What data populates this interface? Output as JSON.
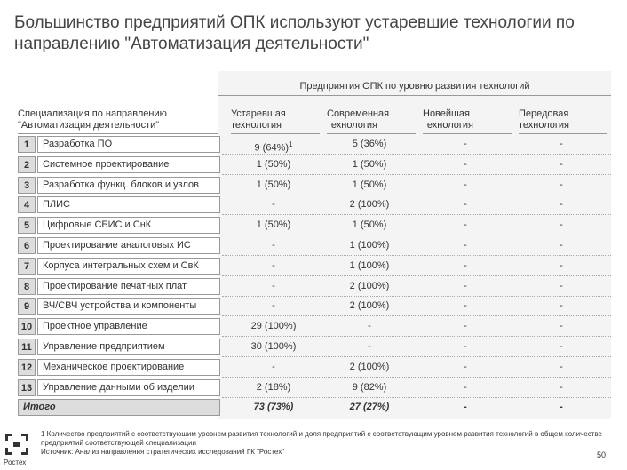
{
  "header": {
    "title": "Большинство предприятий ОПК используют устаревшие технологии по направлению \"Автоматизация деятельности\""
  },
  "table": {
    "group_header": "Предприятия ОПК по уровню развития технологий",
    "row_header": "Специализация по направлению \"Автоматизация деятельности\"",
    "columns": [
      "Устаревшая технология",
      "Современная технология",
      "Новейшая технология",
      "Передовая технология"
    ],
    "note_marker": "1",
    "rows": [
      {
        "num": "1",
        "name": "Разработка ПО",
        "cells": [
          "9 (64%)",
          "5 (36%)",
          "-",
          "-"
        ]
      },
      {
        "num": "2",
        "name": "Системное проектирование",
        "cells": [
          "1 (50%)",
          "1 (50%)",
          "-",
          "-"
        ]
      },
      {
        "num": "3",
        "name": "Разработка функц. блоков и узлов",
        "cells": [
          "1 (50%)",
          "1 (50%)",
          "-",
          "-"
        ]
      },
      {
        "num": "4",
        "name": "ПЛИС",
        "cells": [
          "-",
          "2 (100%)",
          "-",
          "-"
        ]
      },
      {
        "num": "5",
        "name": "Цифровые СБИС и СнК",
        "cells": [
          "1 (50%)",
          "1 (50%)",
          "-",
          "-"
        ]
      },
      {
        "num": "6",
        "name": "Проектирование аналоговых ИС",
        "cells": [
          "-",
          "1 (100%)",
          "-",
          "-"
        ]
      },
      {
        "num": "7",
        "name": "Корпуса интегральных схем и СвК",
        "cells": [
          "-",
          "1 (100%)",
          "-",
          "-"
        ]
      },
      {
        "num": "8",
        "name": "Проектирование печатных плат",
        "cells": [
          "-",
          "2 (100%)",
          "-",
          "-"
        ]
      },
      {
        "num": "9",
        "name": "ВЧ/СВЧ устройства и компоненты",
        "cells": [
          "-",
          "2 (100%)",
          "-",
          "-"
        ]
      },
      {
        "num": "10",
        "name": "Проектное управление",
        "cells": [
          "29 (100%)",
          "-",
          "-",
          "-"
        ]
      },
      {
        "num": "11",
        "name": "Управление предприятием",
        "cells": [
          "30 (100%)",
          "-",
          "-",
          "-"
        ]
      },
      {
        "num": "12",
        "name": "Механическое проектирование",
        "cells": [
          "-",
          "2 (100%)",
          "-",
          "-"
        ]
      },
      {
        "num": "13",
        "name": "Управление данными об изделии",
        "cells": [
          "2 (18%)",
          "9 (82%)",
          "-",
          "-"
        ]
      }
    ],
    "total": {
      "name": "Итого",
      "cells": [
        "73 (73%)",
        "27 (27%)",
        "-",
        "-"
      ]
    }
  },
  "footer": {
    "note": "1 Количество предприятий с соответствующим уровнем развития технологий и доля предприятий с соответствующим уровнем развития технологий в общем количестве предприятий соответствующей специализации",
    "source": "Источник: Анализ направления стратегических исследований ГК \"Ростех\"",
    "page": "50",
    "logo": "Ростех"
  }
}
